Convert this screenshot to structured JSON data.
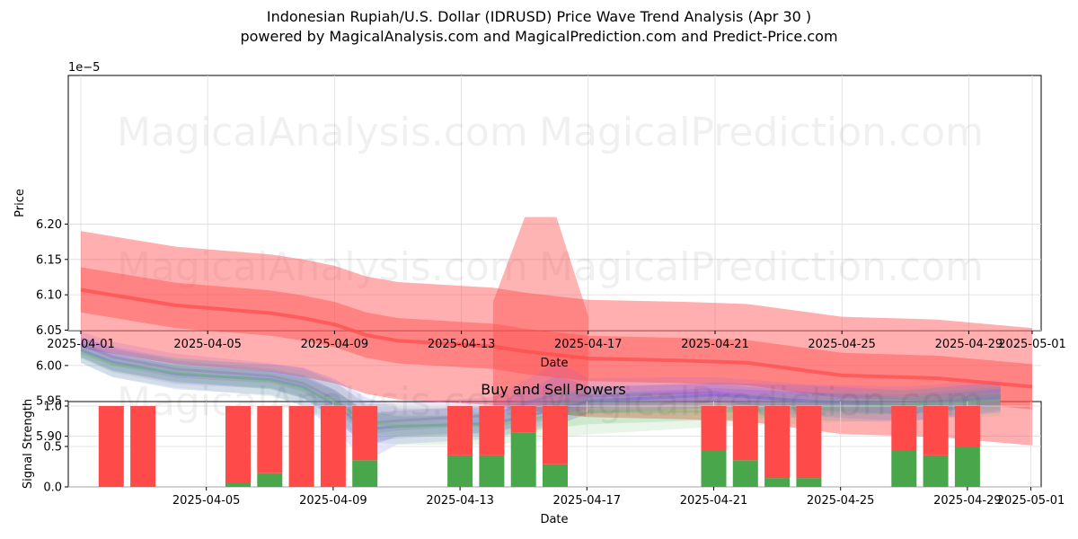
{
  "title": "Indonesian Rupiah/U.S. Dollar (IDRUSD) Price Wave Trend Analysis (Apr 30 )",
  "subtitle": "powered by MagicalAnalysis.com and MagicalPrediction.com and Predict-Price.com",
  "watermarks": [
    "MagicalAnalysis.com",
    "MagicalPrediction.com"
  ],
  "colors": {
    "red": "#ff4d4d",
    "blue": "#5555ff",
    "green": "#6fbf6f",
    "bar_green": "#4aa64a",
    "bar_red": "#ff4a4a"
  },
  "chart_data": [
    {
      "type": "line",
      "title": "",
      "xlabel": "Date",
      "ylabel": "Price",
      "y_multiplier_label": "1e−5",
      "xlim": [
        "2025-03-31",
        "2025-05-02"
      ],
      "ylim": [
        5.85,
        6.21
      ],
      "grid": true,
      "x_ticks": [
        "2025-04-01",
        "2025-04-05",
        "2025-04-09",
        "2025-04-13",
        "2025-04-17",
        "2025-04-21",
        "2025-04-25",
        "2025-04-29",
        "2025-05-01"
      ],
      "y_ticks": [
        "5.90",
        "5.95",
        "6.00",
        "6.05",
        "6.10",
        "6.15",
        "6.20"
      ],
      "red_trend": {
        "x": [
          "2025-04-01",
          "2025-04-04",
          "2025-04-07",
          "2025-04-08",
          "2025-04-09",
          "2025-04-10",
          "2025-04-11",
          "2025-04-14",
          "2025-04-15",
          "2025-04-16",
          "2025-04-17",
          "2025-04-20",
          "2025-04-22",
          "2025-04-25",
          "2025-04-28",
          "2025-05-01"
        ],
        "mid": [
          6.107,
          6.085,
          6.074,
          6.067,
          6.058,
          6.043,
          6.035,
          6.027,
          6.02,
          6.015,
          6.01,
          6.007,
          6.004,
          5.986,
          5.982,
          5.97
        ],
        "inner_band": 0.032,
        "outer_band": 0.083
      },
      "red_spike": {
        "x": [
          "2025-04-14",
          "2025-04-15",
          "2025-04-16",
          "2025-04-17"
        ],
        "upper": [
          6.09,
          6.21,
          6.21,
          6.07
        ]
      },
      "series": [
        {
          "color": "blue",
          "x": [
            "2025-04-01",
            "2025-04-02",
            "2025-04-04",
            "2025-04-07",
            "2025-04-08",
            "2025-04-09",
            "2025-04-10",
            "2025-04-11",
            "2025-04-14",
            "2025-04-16",
            "2025-04-17",
            "2025-04-21",
            "2025-04-24",
            "2025-04-27",
            "2025-04-30"
          ],
          "values": [
            6.022,
            6.005,
            5.988,
            5.98,
            5.97,
            5.945,
            5.91,
            5.914,
            5.918,
            5.938,
            5.95,
            5.958,
            5.95,
            5.943,
            5.955
          ],
          "spread": [
            0.01,
            0.012,
            0.012,
            0.012,
            0.015,
            0.02,
            0.025,
            0.014,
            0.012,
            0.012,
            0.01,
            0.01,
            0.012,
            0.012,
            0.012
          ]
        },
        {
          "color": "purple",
          "x": [
            "2025-04-01",
            "2025-04-02",
            "2025-04-04",
            "2025-04-07",
            "2025-04-08",
            "2025-04-09",
            "2025-04-10",
            "2025-04-11",
            "2025-04-14",
            "2025-04-15",
            "2025-04-16",
            "2025-04-17",
            "2025-04-21",
            "2025-04-24",
            "2025-04-27",
            "2025-04-30"
          ],
          "values": [
            6.03,
            6.012,
            5.995,
            5.985,
            5.975,
            5.952,
            5.918,
            5.922,
            5.93,
            5.946,
            5.96,
            5.957,
            5.962,
            5.948,
            5.945,
            5.958
          ],
          "spread": [
            0.01,
            0.012,
            0.012,
            0.01,
            0.012,
            0.014,
            0.015,
            0.014,
            0.014,
            0.018,
            0.025,
            0.014,
            0.012,
            0.014,
            0.014,
            0.012
          ]
        },
        {
          "color": "green",
          "x": [
            "2025-04-01",
            "2025-04-02",
            "2025-04-04",
            "2025-04-07",
            "2025-04-08",
            "2025-04-09",
            "2025-04-10",
            "2025-04-11",
            "2025-04-14",
            "2025-04-16",
            "2025-04-17",
            "2025-04-21",
            "2025-04-24",
            "2025-04-27",
            "2025-04-30"
          ],
          "values": [
            6.018,
            6.002,
            5.99,
            5.978,
            5.968,
            5.948,
            5.92,
            5.915,
            5.915,
            5.93,
            5.935,
            5.935,
            5.94,
            5.945,
            5.95
          ],
          "spread": [
            0.008,
            0.01,
            0.012,
            0.012,
            0.014,
            0.016,
            0.015,
            0.015,
            0.015,
            0.018,
            0.018,
            0.012,
            0.012,
            0.012,
            0.012
          ]
        }
      ]
    },
    {
      "type": "bar",
      "title": "Buy and Sell Powers",
      "xlabel": "Date",
      "ylabel": "Signal Strength",
      "ylim": [
        0,
        1.05
      ],
      "grid": true,
      "x_ticks": [
        "2025-04-05",
        "2025-04-09",
        "2025-04-13",
        "2025-04-17",
        "2025-04-21",
        "2025-04-25",
        "2025-04-29",
        "2025-05-01"
      ],
      "y_ticks": [
        "0.0",
        "0.5",
        "1.0"
      ],
      "dates": [
        "2025-04-02",
        "2025-04-03",
        "2025-04-06",
        "2025-04-07",
        "2025-04-08",
        "2025-04-09",
        "2025-04-10",
        "2025-04-13",
        "2025-04-14",
        "2025-04-15",
        "2025-04-16",
        "2025-04-21",
        "2025-04-22",
        "2025-04-23",
        "2025-04-24",
        "2025-04-27",
        "2025-04-28",
        "2025-04-29"
      ],
      "buy": [
        0.0,
        0.0,
        0.05,
        0.17,
        0.0,
        0.0,
        0.33,
        0.39,
        0.39,
        0.67,
        0.28,
        0.45,
        0.33,
        0.11,
        0.11,
        0.45,
        0.39,
        0.5
      ],
      "sell": [
        1.0,
        1.0,
        0.95,
        0.83,
        1.0,
        1.0,
        0.67,
        0.61,
        0.61,
        0.33,
        0.72,
        0.55,
        0.67,
        0.89,
        0.89,
        0.55,
        0.61,
        0.5
      ]
    }
  ]
}
